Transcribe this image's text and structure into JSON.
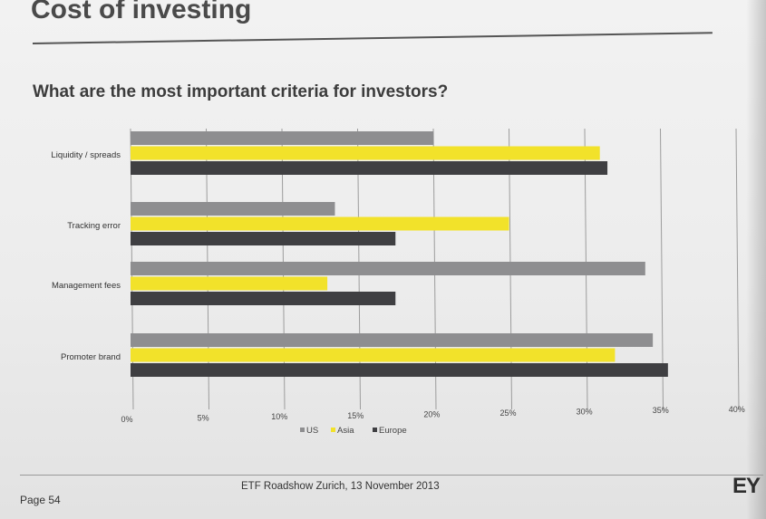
{
  "slide": {
    "title": "Cost of investing",
    "subtitle": "What are the most important criteria for investors?"
  },
  "footer": {
    "event": "ETF Roadshow Zurich, 13 November 2013",
    "page": "Page 54",
    "logo": "EY"
  },
  "colors": {
    "US": "#8e8e90",
    "Asia": "#f2e22a",
    "Europe": "#3f3f42",
    "grid": "#9c9c9c"
  },
  "chart_data": {
    "type": "bar",
    "orientation": "horizontal",
    "categories": [
      "Liquidity / spreads",
      "Tracking error",
      "Management fees",
      "Promoter brand"
    ],
    "series": [
      {
        "name": "US",
        "values": [
          20,
          13.5,
          34,
          34.5
        ]
      },
      {
        "name": "Asia",
        "values": [
          31,
          25,
          13,
          32
        ]
      },
      {
        "name": "Europe",
        "values": [
          31.5,
          17.5,
          17.5,
          35.5
        ]
      }
    ],
    "xticks": [
      "0%",
      "5%",
      "10%",
      "15%",
      "20%",
      "25%",
      "30%",
      "35%",
      "40%"
    ],
    "xlim": [
      0,
      40
    ],
    "grid": true,
    "legend": "bottom"
  }
}
